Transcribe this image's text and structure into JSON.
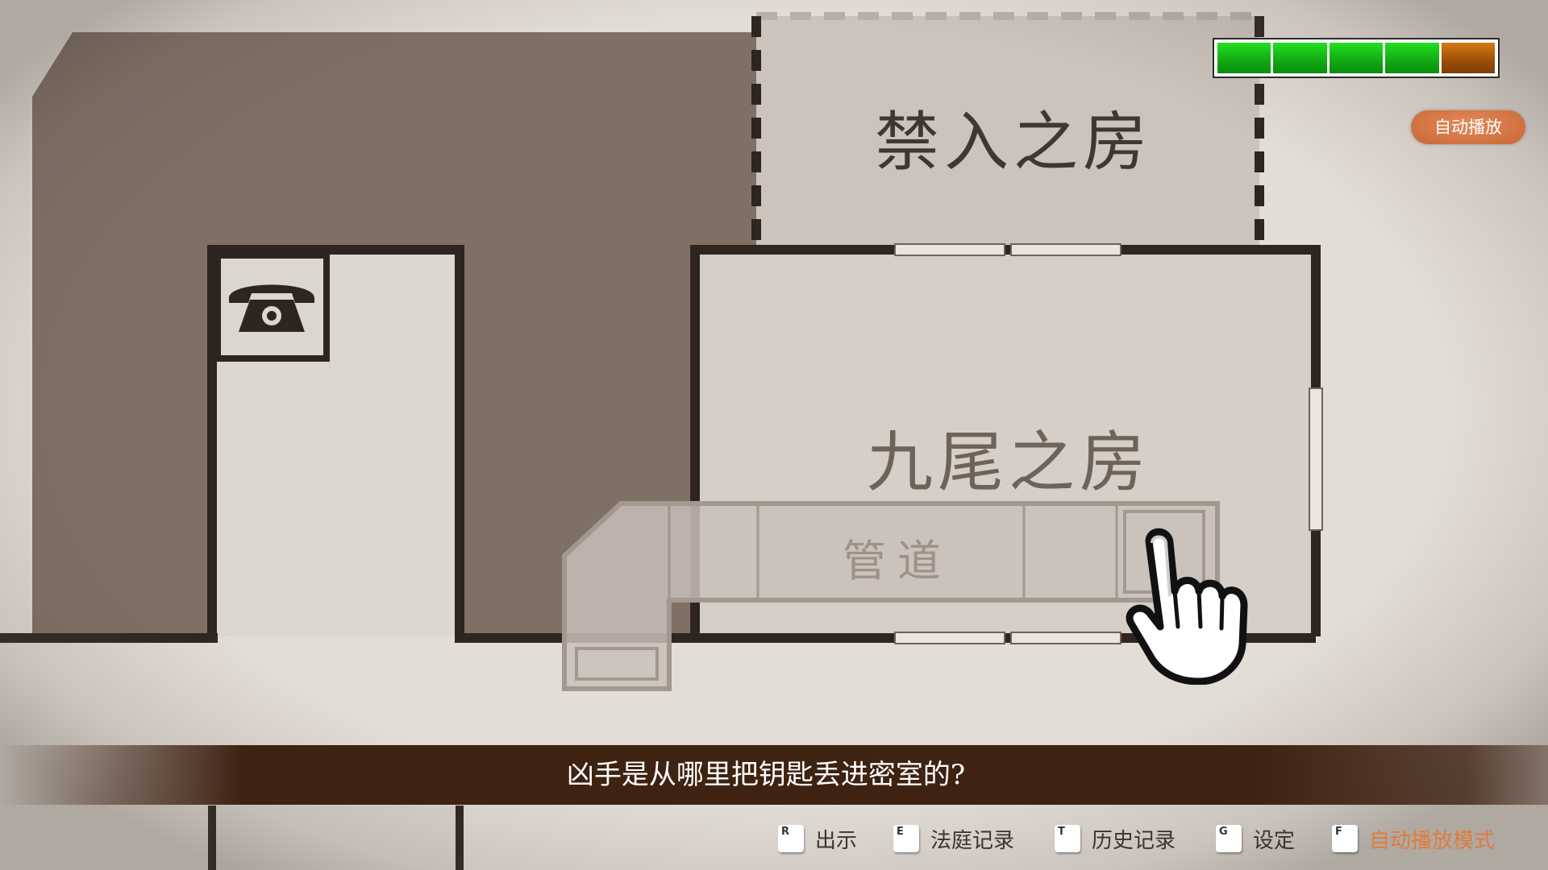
{
  "hud": {
    "health": {
      "full_segments": 4,
      "total_segments": 5,
      "full_color": "#1ec21a",
      "lost_color": "#b5620b"
    },
    "auto_badge": "自动播放"
  },
  "map": {
    "rooms": {
      "forbidden": "禁入之房",
      "nine_tail": "九尾之房",
      "pipe": "管道"
    },
    "icons": [
      "telephone-icon",
      "pointing-hand-icon"
    ]
  },
  "dialog": {
    "text": "凶手是从哪里把钥匙丢进密室的?"
  },
  "controls": [
    {
      "key": "R",
      "label": "出示"
    },
    {
      "key": "E",
      "label": "法庭记录"
    },
    {
      "key": "T",
      "label": "历史记录"
    },
    {
      "key": "G",
      "label": "设定"
    },
    {
      "key": "F",
      "label": "自动播放模式",
      "active": true
    }
  ],
  "colors": {
    "accent": "#e07b3c",
    "dialog_bg": "#3e2212",
    "wall": "#2f2520",
    "outer_floor": "#7d6c62"
  }
}
